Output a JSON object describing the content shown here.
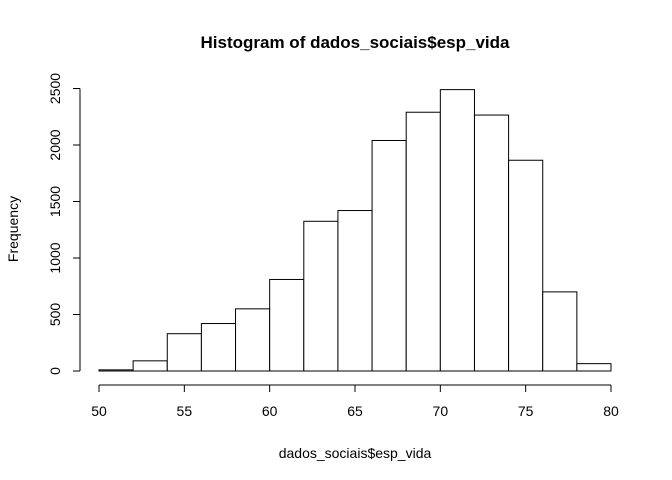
{
  "chart_data": {
    "type": "bar",
    "title": "Histogram of dados_sociais$esp_vida",
    "xlabel": "dados_sociais$esp_vida",
    "ylabel": "Frequency",
    "bin_edges": [
      50,
      52,
      54,
      56,
      58,
      60,
      62,
      64,
      66,
      68,
      70,
      72,
      74,
      76,
      78,
      80
    ],
    "values": [
      10,
      90,
      330,
      420,
      550,
      810,
      1325,
      1420,
      2040,
      2290,
      2490,
      2265,
      1865,
      700,
      65
    ],
    "xlim": [
      50,
      80
    ],
    "ylim": [
      0,
      2500
    ],
    "xticks": [
      "50",
      "55",
      "60",
      "65",
      "70",
      "75",
      "80"
    ],
    "yticks": [
      "0",
      "500",
      "1000",
      "1500",
      "2000",
      "2500"
    ],
    "grid": false,
    "legend": "none"
  }
}
